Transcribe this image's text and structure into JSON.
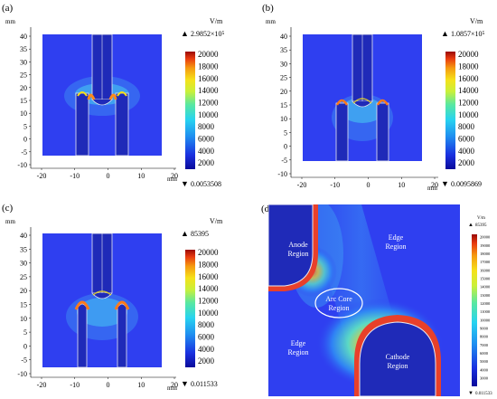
{
  "panels": [
    {
      "label": "(a)",
      "unit": "V/m",
      "max": "2.9852×10⁵",
      "min": "0.0053508",
      "cbar_ticks": [
        "20000",
        "18000",
        "16000",
        "14000",
        "12000",
        "10000",
        "8000",
        "6000",
        "4000",
        "2000"
      ],
      "y_unit": "mm",
      "x_unit": "mm",
      "y_ticks": [
        "40",
        "35",
        "30",
        "25",
        "20",
        "15",
        "10",
        "5",
        "0",
        "-5",
        "-10"
      ],
      "x_ticks": [
        "-20",
        "-10",
        "0",
        "10",
        "20"
      ]
    },
    {
      "label": "(b)",
      "unit": "V/m",
      "max": "1.0857×10⁵",
      "min": "0.0095869",
      "cbar_ticks": [
        "20000",
        "18000",
        "16000",
        "14000",
        "12000",
        "10000",
        "8000",
        "6000",
        "4000",
        "2000"
      ],
      "y_unit": "mm",
      "x_unit": "mm",
      "y_ticks": [
        "40",
        "35",
        "30",
        "25",
        "20",
        "15",
        "10",
        "5",
        "0",
        "-5",
        "-10"
      ],
      "x_ticks": [
        "-20",
        "-10",
        "0",
        "10",
        "20"
      ]
    },
    {
      "label": "(c)",
      "unit": "V/m",
      "max": "85395",
      "min": "0.011533",
      "cbar_ticks": [
        "20000",
        "18000",
        "16000",
        "14000",
        "12000",
        "10000",
        "8000",
        "6000",
        "4000",
        "2000"
      ],
      "y_unit": "mm",
      "x_unit": "mm",
      "y_ticks": [
        "40",
        "35",
        "30",
        "25",
        "20",
        "15",
        "10",
        "5",
        "0",
        "-5",
        "-10"
      ],
      "x_ticks": [
        "-20",
        "-10",
        "0",
        "10",
        "20"
      ]
    },
    {
      "label": "(d)",
      "unit": "V/m",
      "max": "85395",
      "min": "0.011533",
      "cbar_ticks": [
        "20000",
        "19000",
        "18000",
        "17000",
        "16000",
        "15000",
        "14000",
        "13000",
        "12000",
        "11000",
        "10000",
        "9000",
        "8000",
        "7000",
        "6000",
        "5000",
        "4000",
        "3000"
      ],
      "regions": {
        "anode": [
          "Anode",
          "Region"
        ],
        "edge_top": [
          "Edge",
          "Region"
        ],
        "arc_core": [
          "Arc Core",
          "Region"
        ],
        "edge_left": [
          "Edge",
          "Region"
        ],
        "cathode": [
          "Cathode",
          "Region"
        ]
      }
    }
  ],
  "colors": {
    "field_bg": "#2f3ff0",
    "field_deep": "#1a16d8",
    "electrode": "#1f2ab8",
    "outline": "#e8e8f0"
  }
}
